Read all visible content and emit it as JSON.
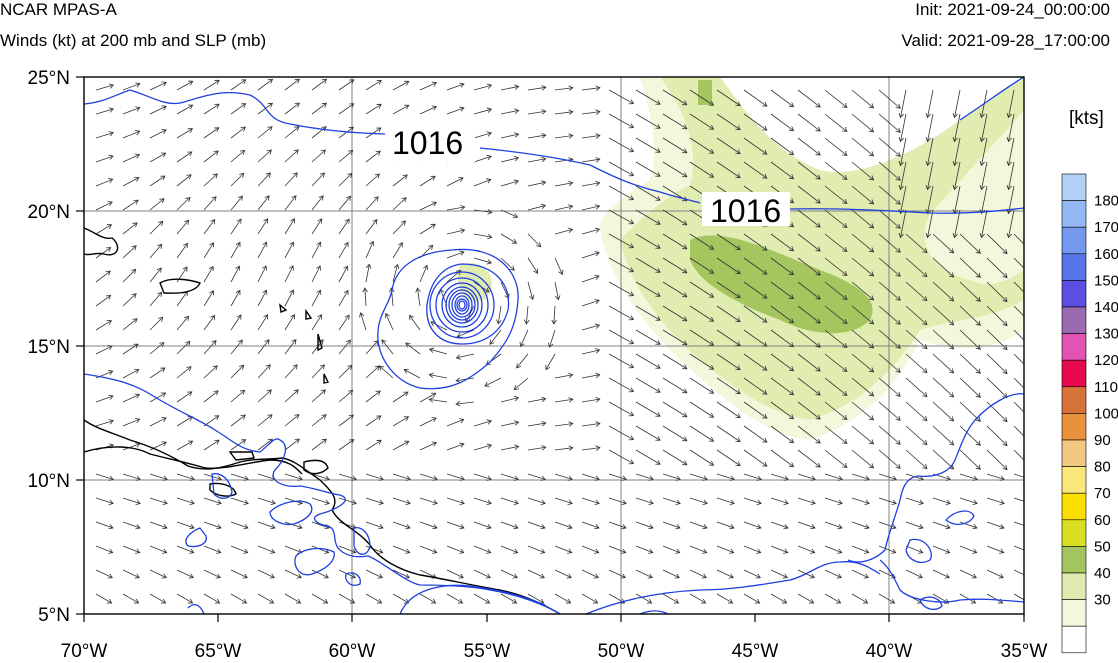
{
  "header": {
    "model": "NCAR MPAS-A",
    "subtitle": "Winds (kt) at 200 mb and SLP (mb)",
    "init": "Init: 2021-09-24_00:00:00",
    "valid": "Valid: 2021-09-28_17:00:00"
  },
  "map": {
    "lon_labels": [
      "70°W",
      "65°W",
      "60°W",
      "55°W",
      "50°W",
      "45°W",
      "40°W",
      "35°W"
    ],
    "lat_labels": [
      "25°N",
      "20°N",
      "15°N",
      "10°N",
      "5°N"
    ],
    "contour_labels": [
      "1016",
      "1016"
    ],
    "colors": {
      "slp_contour": "#1f3fe0",
      "coastline": "#000000",
      "grid": "#808080",
      "arrows": "#333333"
    }
  },
  "colorbar": {
    "title": "[kts]",
    "levels": [
      "180",
      "170",
      "160",
      "150",
      "140",
      "130",
      "120",
      "110",
      "100",
      "90",
      "80",
      "70",
      "60",
      "50",
      "40",
      "30"
    ],
    "colors": [
      "#b4cff6",
      "#94b8f4",
      "#7598ef",
      "#5673e8",
      "#5b4ee0",
      "#9b6ab2",
      "#e254b4",
      "#e8094f",
      "#d77239",
      "#e8923c",
      "#f2c882",
      "#fbe77e",
      "#fbdf00",
      "#d8e021",
      "#a4c55e",
      "#e0ebaf",
      "#f4f7dc",
      "#ffffff"
    ]
  }
}
